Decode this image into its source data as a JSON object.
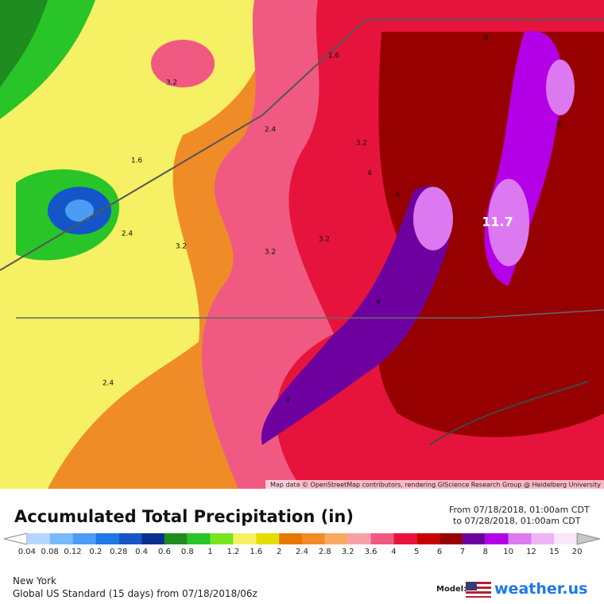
{
  "map": {
    "attribution": "Map data © OpenStreetMap contributors, rendering GIScience Research Group @ Heidelberg University",
    "contour_labels": [
      "1.6",
      "3.2",
      "2.4",
      "3.2",
      "1.6",
      "4",
      "8",
      "11.7",
      "2.4",
      "3.2",
      "3.2",
      "3.2",
      "2.4",
      "4",
      "4",
      "4",
      "8"
    ]
  },
  "legend": {
    "title": "Accumulated Total Precipitation (in)",
    "from": "From 07/18/2018, 01:00am CDT",
    "to": "to 07/28/2018, 01:00am CDT",
    "labels": [
      "0.04",
      "0.08",
      "0.12",
      "0.2",
      "0.28",
      "0.4",
      "0.6",
      "0.8",
      "1",
      "1.2",
      "1.6",
      "2",
      "2.4",
      "2.8",
      "3.2",
      "3.6",
      "4",
      "5",
      "6",
      "7",
      "8",
      "10",
      "12",
      "15",
      "20"
    ],
    "colors": [
      "#ffffff",
      "#b4d7ff",
      "#78b9fb",
      "#4a9cf5",
      "#1e78e6",
      "#1456c8",
      "#0a2f8f",
      "#1e8c1e",
      "#28c428",
      "#78e61e",
      "#f5f064",
      "#e6dc00",
      "#e67800",
      "#f08c28",
      "#f8a860",
      "#f8a0a8",
      "#f05a82",
      "#e6143c",
      "#c80000",
      "#960000",
      "#6e00a0",
      "#b400e6",
      "#dc78f0",
      "#f0b4f8",
      "#fae6fa",
      "#c8c8c8"
    ]
  },
  "footer": {
    "location": "New York",
    "model_run": "Global US Standard (15 days) from 07/18/2018/06z",
    "model_label": "Model:",
    "brand": "weather.us"
  }
}
